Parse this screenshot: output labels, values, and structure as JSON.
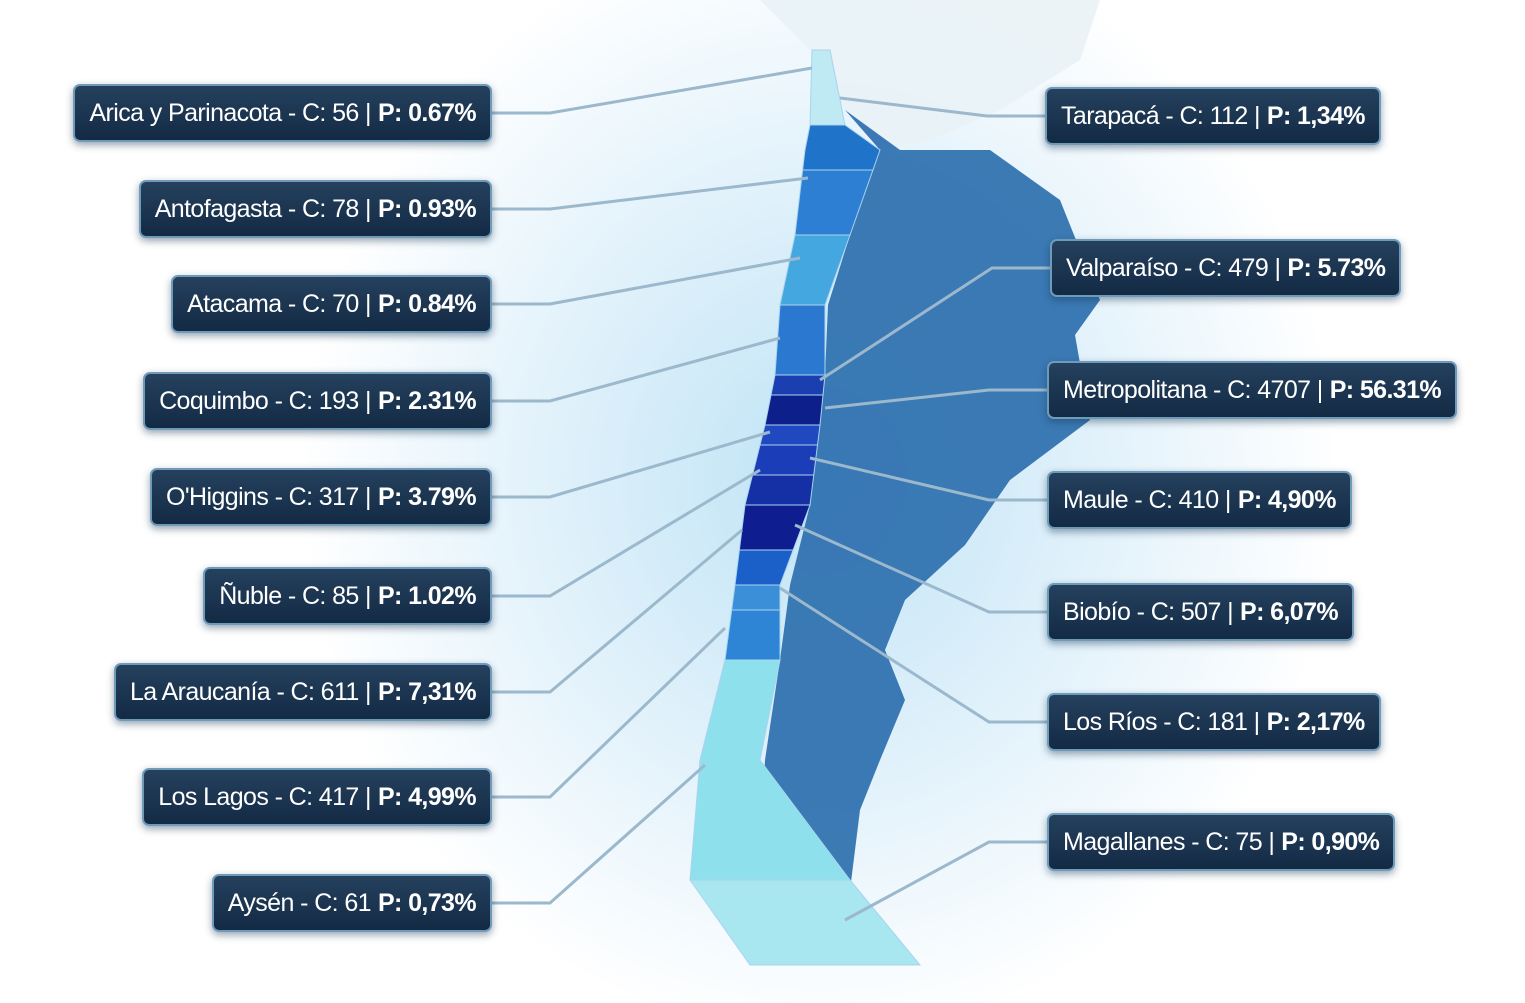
{
  "labels": {
    "left": [
      {
        "text": "Arica y Parinacota - C: 56 |",
        "highlight": "P: 0.67%"
      },
      {
        "text": "Antofagasta - C: 78 |",
        "highlight": "P: 0.93%"
      },
      {
        "text": "Atacama - C: 70 |",
        "highlight": "P: 0.84%"
      },
      {
        "text": "Coquimbo - C: 193 |",
        "highlight": "P: 2.31%"
      },
      {
        "text": "O'Higgins - C: 317 |",
        "highlight": "P: 3.79%"
      },
      {
        "text": "Ñuble - C: 85 |",
        "highlight": "P: 1.02%"
      },
      {
        "text": "La Araucanía - C: 611 |",
        "highlight": "P: 7,31%"
      },
      {
        "text": "Los Lagos - C: 417 |",
        "highlight": "P: 4,99%"
      },
      {
        "text": "Aysén - C: 61",
        "highlight": "P: 0,73%"
      }
    ],
    "right": [
      {
        "text": "Tarapacá - C: 112 |",
        "highlight": "P: 1,34%"
      },
      {
        "text": "Valparaíso - C: 479 |",
        "highlight": "P: 5.73%"
      },
      {
        "text": "Metropolitana - C: 4707 |",
        "highlight": "P: 56.31%"
      },
      {
        "text": "Maule - C: 410 |",
        "highlight": "P: 4,90%"
      },
      {
        "text": "Biobío - C: 507 |",
        "highlight": "P: 6,07%"
      },
      {
        "text": "Los Ríos - C: 181 |",
        "highlight": "P: 2,17%"
      },
      {
        "text": "Magallanes - C: 75 |",
        "highlight": "P: 0,90%"
      }
    ]
  }
}
